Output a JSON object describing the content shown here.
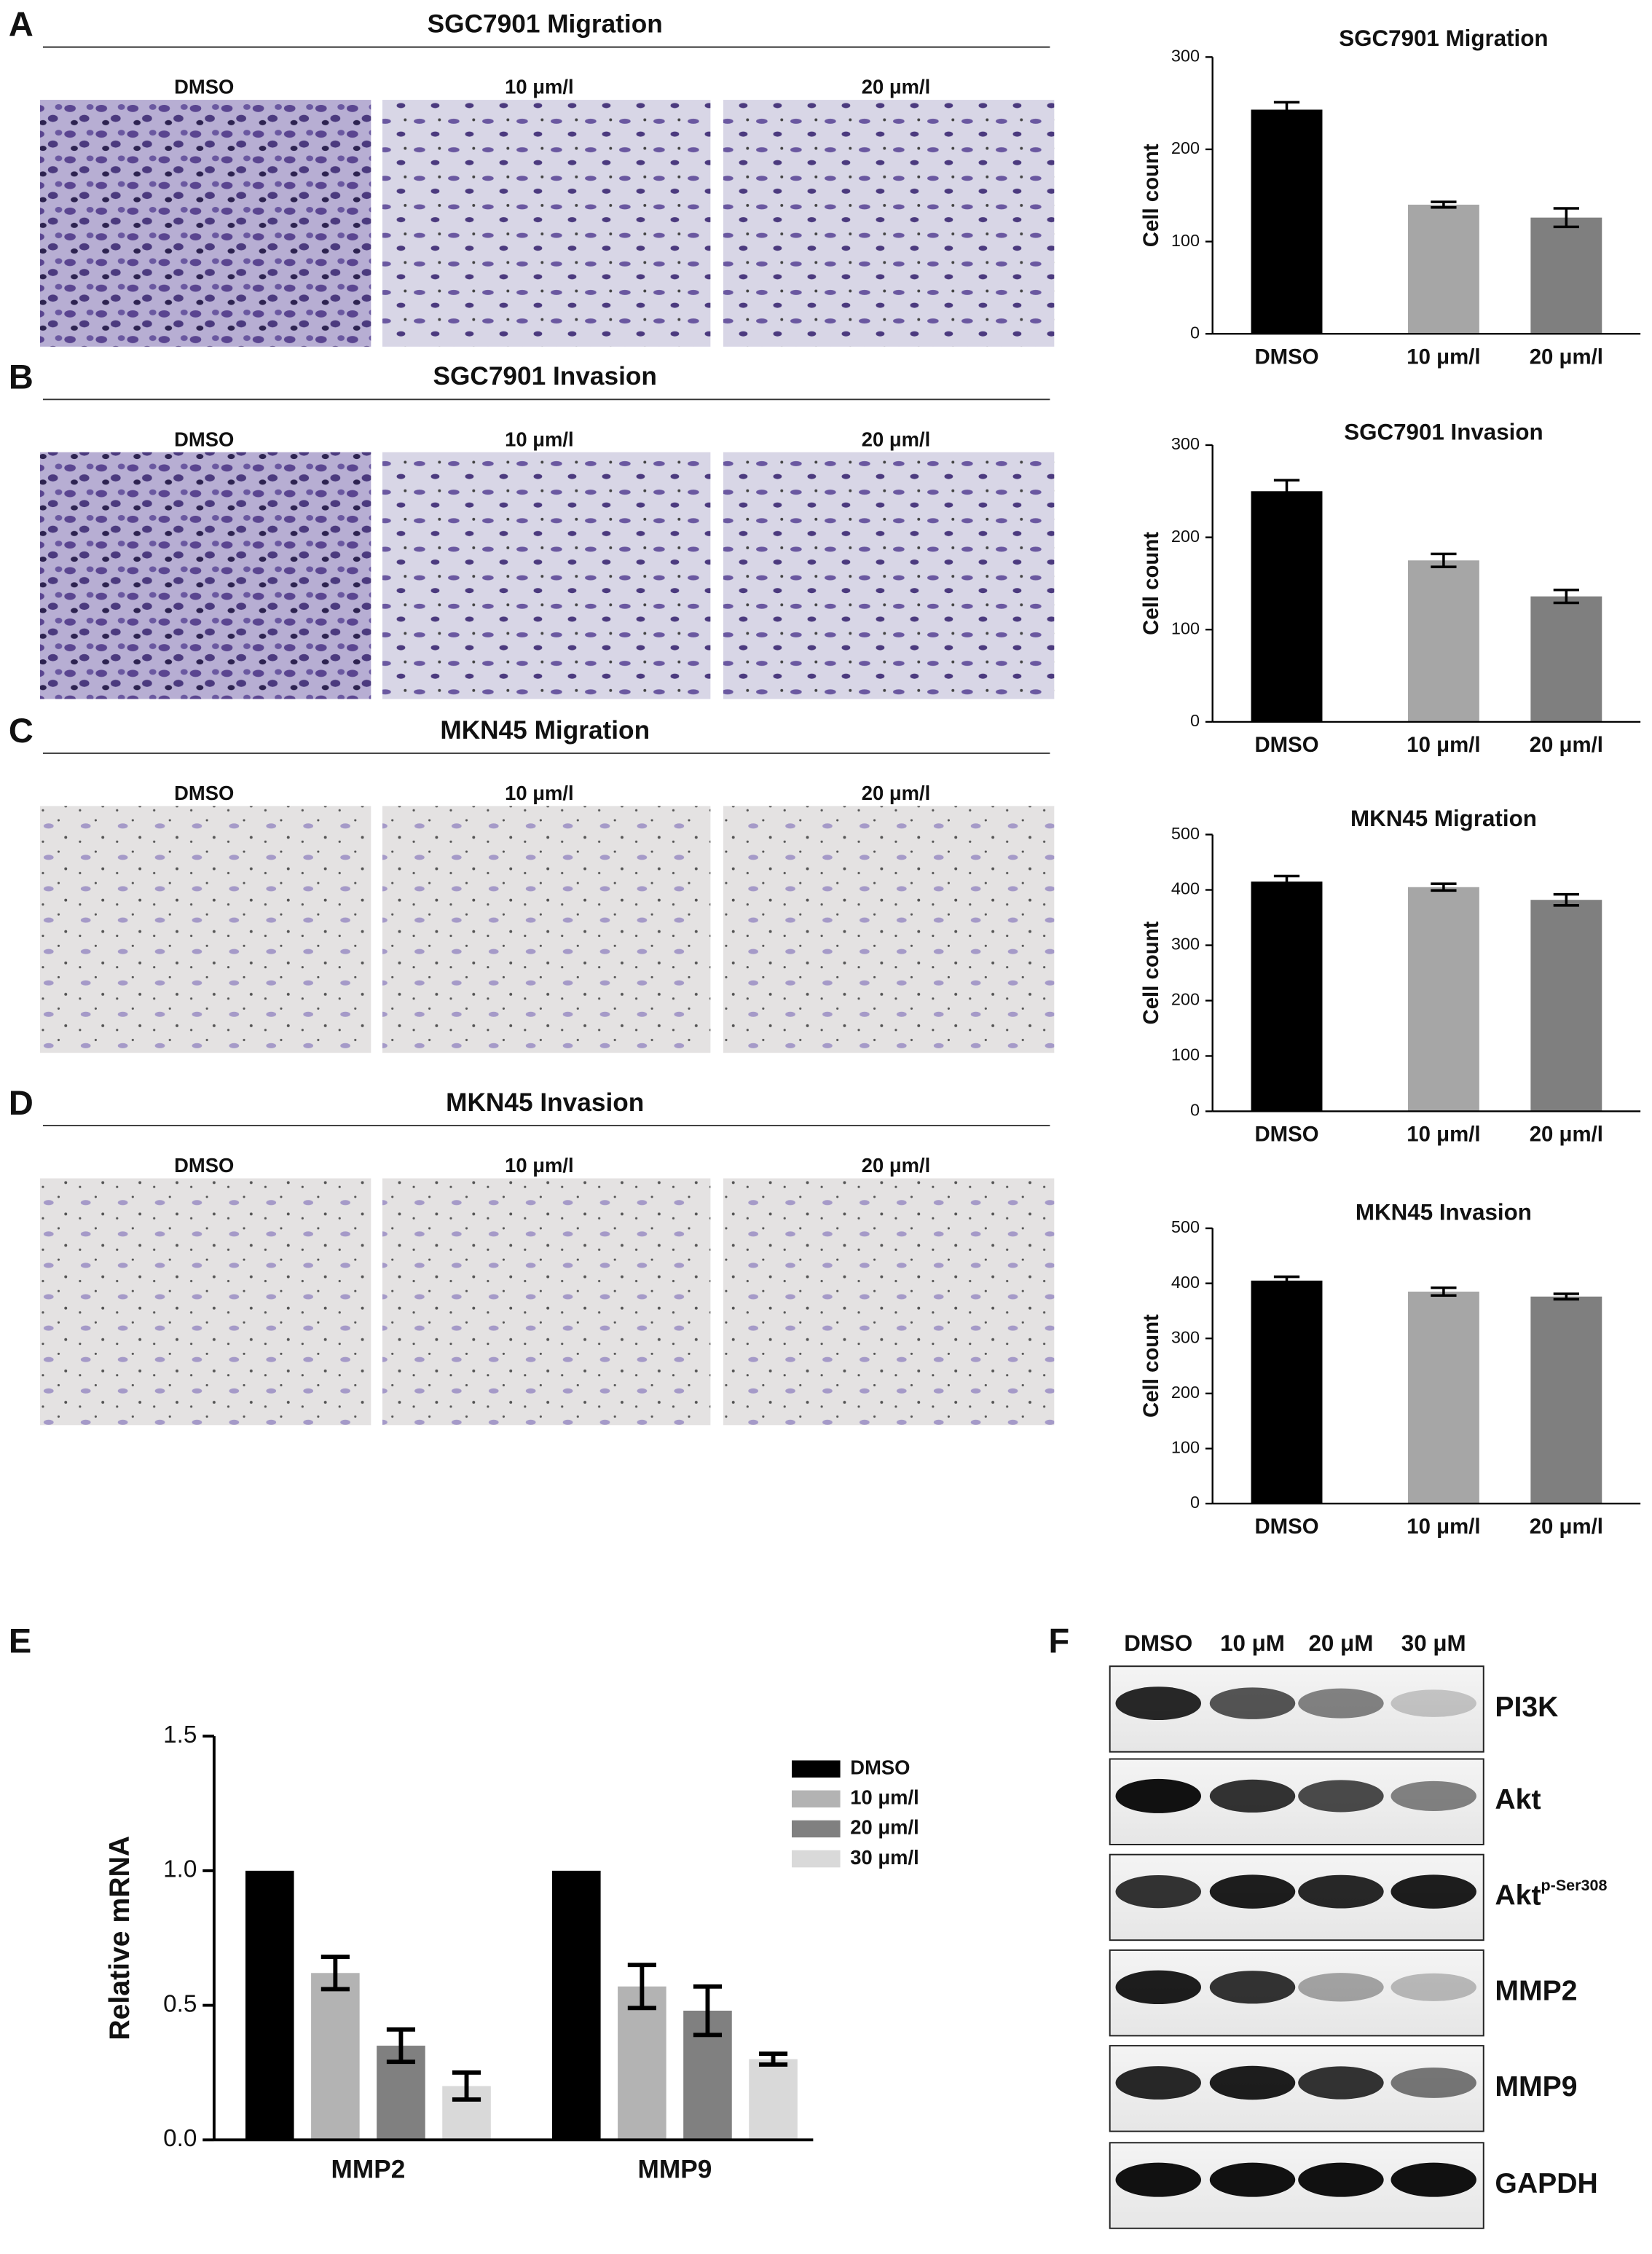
{
  "panels": [
    {
      "letter": "A",
      "title": "SGC7901 Migration",
      "labels": [
        "DMSO",
        "10 μm/l",
        "20 μm/l"
      ]
    },
    {
      "letter": "B",
      "title": "SGC7901 Invasion",
      "labels": [
        "DMSO",
        "10 μm/l",
        "20 μm/l"
      ]
    },
    {
      "letter": "C",
      "title": "MKN45 Migration",
      "labels": [
        "DMSO",
        "10 μm/l",
        "20 μm/l"
      ]
    },
    {
      "letter": "D",
      "title": "MKN45 Invasion",
      "labels": [
        "DMSO",
        "10 μm/l",
        "20 μm/l"
      ]
    }
  ],
  "western_blot": {
    "letter": "F",
    "lanes": [
      "DMSO",
      "10 μM",
      "20 μM",
      "30 μM"
    ],
    "proteins": [
      "PI3K",
      "Akt",
      "Akt",
      "MMP2",
      "MMP9",
      "GAPDH"
    ],
    "superscript": "p-Ser308"
  },
  "chart_data": [
    {
      "type": "bar",
      "title": "SGC7901 Migration",
      "y_label": "Cell count",
      "categories": [
        "DMSO",
        "10 μm/l",
        "20 μm/l"
      ],
      "values": [
        243,
        140,
        126
      ],
      "errors": [
        8,
        3,
        10
      ],
      "colors": [
        "#000000",
        "#a6a6a6",
        "#7f7f7f"
      ],
      "ylim": [
        0,
        300
      ],
      "yticks": [
        0,
        100,
        200,
        300
      ]
    },
    {
      "type": "bar",
      "title": "SGC7901 Invasion",
      "y_label": "Cell count",
      "categories": [
        "DMSO",
        "10 μm/l",
        "20 μm/l"
      ],
      "values": [
        250,
        175,
        136
      ],
      "errors": [
        12,
        7,
        7
      ],
      "colors": [
        "#000000",
        "#a6a6a6",
        "#7f7f7f"
      ],
      "ylim": [
        0,
        300
      ],
      "yticks": [
        0,
        100,
        200,
        300
      ]
    },
    {
      "type": "bar",
      "title": "MKN45 Migration",
      "y_label": "Cell count",
      "categories": [
        "DMSO",
        "10 μm/l",
        "20 μm/l"
      ],
      "values": [
        415,
        405,
        382
      ],
      "errors": [
        10,
        6,
        10
      ],
      "colors": [
        "#000000",
        "#a6a6a6",
        "#7f7f7f"
      ],
      "ylim": [
        0,
        500
      ],
      "yticks": [
        0,
        100,
        200,
        300,
        400,
        500
      ]
    },
    {
      "type": "bar",
      "title": "MKN45 Invasion",
      "y_label": "Cell count",
      "categories": [
        "DMSO",
        "10 μm/l",
        "20 μm/l"
      ],
      "values": [
        405,
        385,
        376
      ],
      "errors": [
        7,
        7,
        5
      ],
      "colors": [
        "#000000",
        "#a6a6a6",
        "#7f7f7f"
      ],
      "ylim": [
        0,
        500
      ],
      "yticks": [
        0,
        100,
        200,
        300,
        400,
        500
      ]
    },
    {
      "type": "grouped_bar",
      "letter": "E",
      "y_label": "Relative mRNA",
      "categories": [
        "MMP2",
        "MMP9"
      ],
      "series": [
        {
          "name": "DMSO",
          "color": "#000000",
          "values": [
            1.0,
            1.0
          ]
        },
        {
          "name": "10 μm/l",
          "color": "#b3b3b3",
          "values": [
            0.62,
            0.57
          ],
          "errors": [
            0.06,
            0.08
          ]
        },
        {
          "name": "20 μm/l",
          "color": "#808080",
          "values": [
            0.35,
            0.48
          ],
          "errors": [
            0.06,
            0.09
          ]
        },
        {
          "name": "30 μm/l",
          "color": "#d9d9d9",
          "values": [
            0.2,
            0.3
          ],
          "errors": [
            0.05,
            0.02
          ]
        }
      ],
      "ylim": [
        0,
        1.5
      ],
      "yticks": [
        {
          "value": 0,
          "label": "0.0"
        },
        {
          "value": 0.5,
          "label": "0.5"
        },
        {
          "value": 1,
          "label": "1.0"
        },
        {
          "value": 1.5,
          "label": "1.5"
        }
      ]
    }
  ]
}
